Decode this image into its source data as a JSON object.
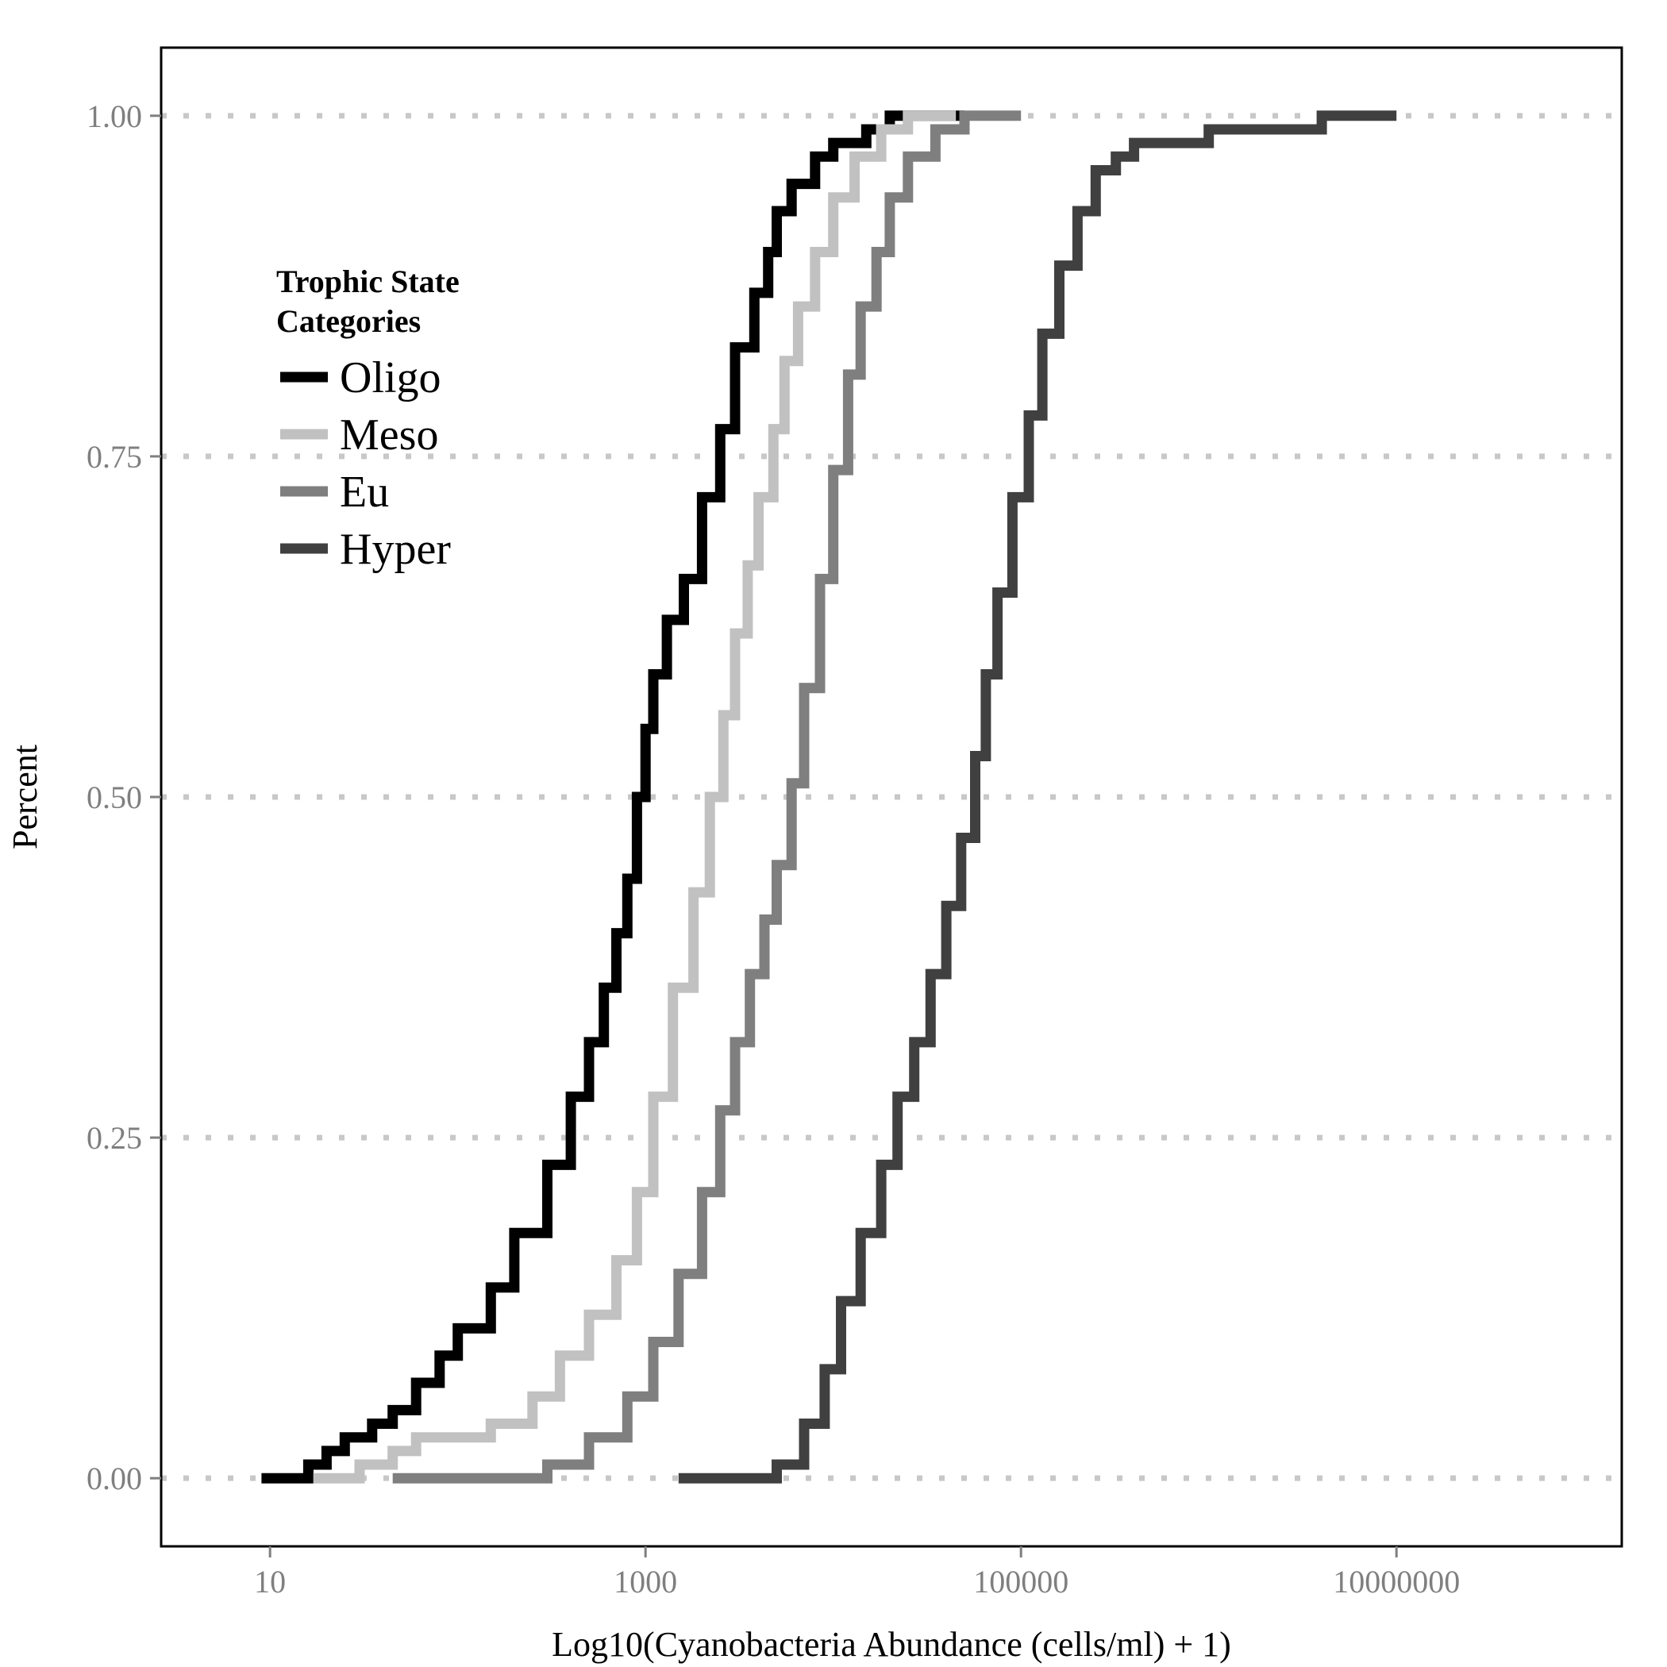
{
  "chart_data": {
    "type": "line",
    "subtype": "step-ecdf",
    "xlabel": "Log10(Cyanobacteria Abundance (cells/ml) + 1)",
    "ylabel": "Percent",
    "x_scale": "log10",
    "xlim": [
      0.42,
      8.2
    ],
    "ylim": [
      -0.05,
      1.05
    ],
    "x_ticks": [
      {
        "value": 10,
        "label": "10"
      },
      {
        "value": 1000,
        "label": "1000"
      },
      {
        "value": 100000,
        "label": "100000"
      },
      {
        "value": 10000000,
        "label": "10000000"
      }
    ],
    "y_ticks": [
      {
        "value": 0,
        "label": "0.00"
      },
      {
        "value": 0.25,
        "label": "0.25"
      },
      {
        "value": 0.5,
        "label": "0.50"
      },
      {
        "value": 0.75,
        "label": "0.75"
      },
      {
        "value": 1,
        "label": "1.00"
      }
    ],
    "grid": "horizontal dotted at major y ticks",
    "legend": {
      "title_lines": [
        "Trophic State",
        "Categories"
      ],
      "placement": "top-left inside plot"
    },
    "series": [
      {
        "name": "Oligo",
        "color": "#000000",
        "x": [
          9,
          16,
          20,
          25,
          35,
          45,
          60,
          80,
          100,
          150,
          200,
          300,
          400,
          500,
          600,
          700,
          800,
          900,
          1000,
          1100,
          1300,
          1600,
          2000,
          2500,
          3000,
          3800,
          4500,
          5000,
          6000,
          8000,
          10000,
          15000,
          20000,
          25000,
          50000
        ],
        "y": [
          0.0,
          0.01,
          0.02,
          0.03,
          0.04,
          0.05,
          0.07,
          0.09,
          0.11,
          0.14,
          0.18,
          0.23,
          0.28,
          0.32,
          0.36,
          0.4,
          0.44,
          0.5,
          0.55,
          0.59,
          0.63,
          0.66,
          0.72,
          0.77,
          0.83,
          0.87,
          0.9,
          0.93,
          0.95,
          0.97,
          0.98,
          0.99,
          1.0,
          1.0,
          1.0
        ]
      },
      {
        "name": "Meso",
        "color": "#c1c1c1",
        "x": [
          17,
          30,
          45,
          60,
          90,
          150,
          250,
          350,
          500,
          700,
          900,
          1100,
          1400,
          1800,
          2200,
          2600,
          3000,
          3500,
          4000,
          4800,
          5500,
          6500,
          8000,
          10000,
          13000,
          18000,
          25000,
          35000,
          45000
        ],
        "y": [
          0.0,
          0.01,
          0.02,
          0.03,
          0.03,
          0.04,
          0.06,
          0.09,
          0.12,
          0.16,
          0.21,
          0.28,
          0.36,
          0.43,
          0.5,
          0.56,
          0.62,
          0.67,
          0.72,
          0.77,
          0.82,
          0.86,
          0.9,
          0.94,
          0.97,
          0.99,
          1.0,
          1.0,
          1.0
        ]
      },
      {
        "name": "Eu",
        "color": "#7f7f7f",
        "x": [
          45,
          100,
          300,
          500,
          800,
          1100,
          1500,
          2000,
          2500,
          3000,
          3600,
          4300,
          5000,
          6000,
          7000,
          8500,
          10000,
          12000,
          14000,
          17000,
          20000,
          25000,
          35000,
          50000,
          70000,
          100000
        ],
        "y": [
          0.0,
          0.0,
          0.01,
          0.03,
          0.06,
          0.1,
          0.15,
          0.21,
          0.27,
          0.32,
          0.37,
          0.41,
          0.45,
          0.51,
          0.58,
          0.66,
          0.74,
          0.81,
          0.86,
          0.9,
          0.94,
          0.97,
          0.99,
          1.0,
          1.0,
          1.0
        ]
      },
      {
        "name": "Hyper",
        "color": "#404040",
        "x": [
          1500,
          3500,
          5000,
          7000,
          9000,
          11000,
          14000,
          18000,
          22000,
          27000,
          33000,
          40000,
          48000,
          57000,
          65000,
          75000,
          90000,
          110000,
          130000,
          160000,
          200000,
          250000,
          320000,
          400000,
          600000,
          1000000,
          1500000,
          2500000,
          4000000,
          6000000,
          10000000
        ],
        "y": [
          0.0,
          0.0,
          0.01,
          0.04,
          0.08,
          0.13,
          0.18,
          0.23,
          0.28,
          0.32,
          0.37,
          0.42,
          0.47,
          0.53,
          0.59,
          0.65,
          0.72,
          0.78,
          0.84,
          0.89,
          0.93,
          0.96,
          0.97,
          0.98,
          0.98,
          0.99,
          0.99,
          0.99,
          1.0,
          1.0,
          1.0
        ]
      }
    ]
  }
}
